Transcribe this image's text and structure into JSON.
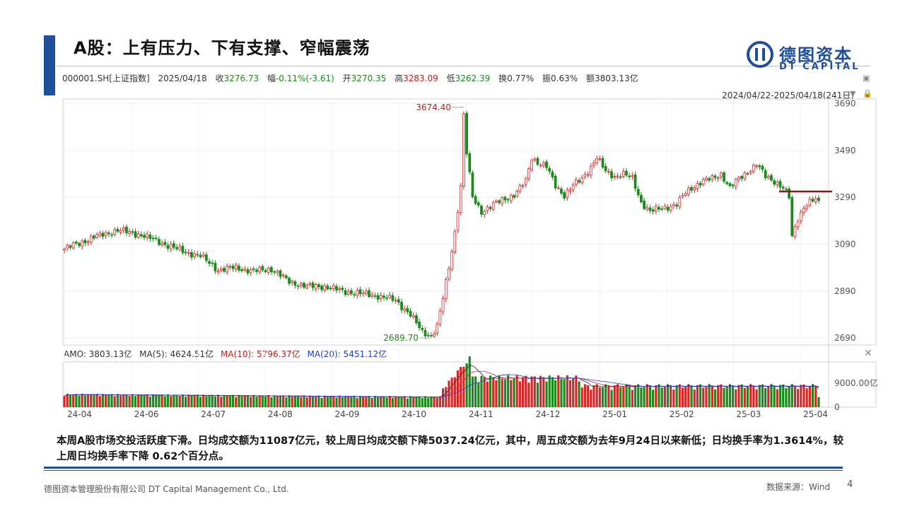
{
  "slide": {
    "title": "A股：上有压力、下有支撑、窄幅震荡",
    "logo_cn": "德图资本",
    "logo_en": "DT CAPITAL",
    "summary": "本周A股市场交投活跃度下滑。日均成交额为11087亿元，较上周日均成交额下降5037.24亿元，其中，周五成交额为去年9月24日以来新低；日均换手率为1.3614%，较上周日均换手率下降 0.62个百分点。",
    "footer_company": "德图资本管理股份有限公司 DT Capital Management Co., Ltd.",
    "footer_source": "数据来源：Wind",
    "page_number": "4"
  },
  "quote": {
    "code": "000001.SH[上证指数]",
    "date": "2025/04/18",
    "close_label": "收",
    "close": "3276.73",
    "amp_label": "幅",
    "amp": "-0.11%(-3.61)",
    "open_label": "开",
    "open": "3270.35",
    "high_label": "高",
    "high": "3283.09",
    "low_label": "低",
    "low": "3262.39",
    "turnover_label": "换",
    "turnover": "0.77%",
    "swing_label": "振",
    "swing": "0.63%",
    "amount_label": "额",
    "amount": "3803.13亿",
    "range": "2024/04/22-2025/04/18(241日)"
  },
  "volume_legend": {
    "amo": "AMO: 3803.13亿",
    "ma5": "MA(5): 4624.51亿",
    "ma10": "MA(10): 5796.37亿",
    "ma20": "MA(20): 5451.12亿"
  },
  "chart_data": {
    "type": "candlestick",
    "title": "",
    "up_color": "#d62728",
    "down_color": "#1a8a1a",
    "resistance_line": 3315,
    "resistance_color": "#a01010",
    "price_axis": {
      "ticks": [
        2690,
        2890,
        3090,
        3290,
        3490,
        3690
      ],
      "range": [
        2660,
        3710
      ]
    },
    "x_tick_labels": [
      "24-04",
      "24-06",
      "24-07",
      "24-08",
      "24-09",
      "24-10",
      "24-11",
      "24-12",
      "25-01",
      "25-02",
      "25-03",
      "25-04"
    ],
    "annotations": [
      {
        "text": "3674.40",
        "value": 3674.4,
        "kind": "high"
      },
      {
        "text": "2689.70",
        "value": 2689.7,
        "kind": "low"
      }
    ],
    "volume_axis": {
      "ticks_labels": [
        "9000.00亿",
        "0"
      ],
      "ticks": [
        9000,
        0
      ],
      "range": [
        0,
        17000
      ]
    },
    "key_points": [
      [
        0,
        3070
      ],
      [
        10,
        3120
      ],
      [
        18,
        3150
      ],
      [
        26,
        3130
      ],
      [
        32,
        3100
      ],
      [
        40,
        3060
      ],
      [
        46,
        3040
      ],
      [
        52,
        2980
      ],
      [
        58,
        2990
      ],
      [
        64,
        2975
      ],
      [
        70,
        2985
      ],
      [
        76,
        2930
      ],
      [
        82,
        2910
      ],
      [
        88,
        2910
      ],
      [
        94,
        2890
      ],
      [
        100,
        2880
      ],
      [
        106,
        2870
      ],
      [
        112,
        2850
      ],
      [
        117,
        2790
      ],
      [
        121,
        2715
      ],
      [
        124,
        2700
      ],
      [
        126,
        2740
      ],
      [
        128,
        2860
      ],
      [
        130,
        2990
      ],
      [
        132,
        3140
      ],
      [
        134,
        3340
      ],
      [
        135,
        3640
      ],
      [
        136,
        3480
      ],
      [
        138,
        3290
      ],
      [
        141,
        3230
      ],
      [
        144,
        3250
      ],
      [
        148,
        3280
      ],
      [
        152,
        3300
      ],
      [
        156,
        3360
      ],
      [
        158,
        3460
      ],
      [
        160,
        3440
      ],
      [
        163,
        3420
      ],
      [
        166,
        3340
      ],
      [
        169,
        3300
      ],
      [
        172,
        3340
      ],
      [
        175,
        3370
      ],
      [
        178,
        3420
      ],
      [
        180,
        3460
      ],
      [
        183,
        3400
      ],
      [
        186,
        3380
      ],
      [
        189,
        3390
      ],
      [
        192,
        3370
      ],
      [
        195,
        3270
      ],
      [
        198,
        3230
      ],
      [
        201,
        3240
      ],
      [
        204,
        3250
      ],
      [
        207,
        3260
      ],
      [
        210,
        3310
      ],
      [
        213,
        3340
      ],
      [
        216,
        3360
      ],
      [
        219,
        3370
      ],
      [
        222,
        3390
      ],
      [
        225,
        3330
      ],
      [
        228,
        3370
      ],
      [
        231,
        3400
      ],
      [
        234,
        3430
      ],
      [
        237,
        3380
      ],
      [
        240,
        3360
      ],
      [
        243,
        3330
      ],
      [
        245,
        3290
      ],
      [
        246,
        3120
      ],
      [
        248,
        3200
      ],
      [
        250,
        3250
      ],
      [
        252,
        3270
      ],
      [
        254,
        3280
      ],
      [
        255,
        3276.73
      ]
    ]
  }
}
